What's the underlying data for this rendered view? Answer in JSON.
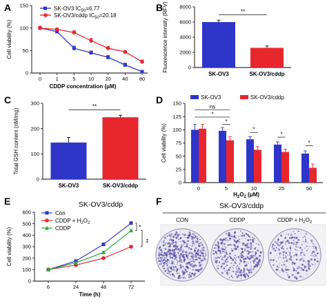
{
  "chart_data": [
    {
      "panel": "A",
      "type": "line",
      "categories": [
        "0",
        "1",
        "5",
        "10",
        "20",
        "40",
        "80"
      ],
      "series": [
        {
          "name": "SK-OV3 IC50=6.77",
          "color": "#2f35c9",
          "values": [
            100,
            92,
            55,
            45,
            35,
            18,
            3
          ],
          "errors": [
            4,
            4,
            5,
            4,
            4,
            4,
            3
          ]
        },
        {
          "name": "SK-OV3/cddp IC50=20.18",
          "color": "#e8262e",
          "values": [
            100,
            97,
            90,
            72,
            55,
            47,
            25
          ],
          "errors": [
            4,
            3,
            4,
            5,
            4,
            3,
            4
          ]
        }
      ],
      "xlabel": "CDDP concentration (μM)",
      "ylabel": "Cell viability (%)",
      "ylim": [
        0,
        150
      ],
      "yticks": [
        "0",
        "50",
        "100",
        "150"
      ],
      "grid": false,
      "legend": "top-left"
    },
    {
      "panel": "B",
      "type": "bar",
      "categories": [
        "SK-OV3",
        "SK-OV3/cddp"
      ],
      "values": [
        6000,
        2600
      ],
      "errors": [
        250,
        250
      ],
      "colors": [
        "#2f35c9",
        "#e8262e"
      ],
      "ylabel": "Fluorescence intensity (RFV)",
      "ylim": [
        0,
        8000
      ],
      "yticks": [
        "0",
        "2000",
        "4000",
        "6000",
        "8000"
      ],
      "significance": "**"
    },
    {
      "panel": "C",
      "type": "bar",
      "categories": [
        "SK-OV3",
        "SK-OV3/cddp"
      ],
      "values": [
        145,
        245
      ],
      "errors": [
        20,
        8
      ],
      "colors": [
        "#2f35c9",
        "#e8262e"
      ],
      "ylabel": "Total GSH content (nM/mg)",
      "ylim": [
        0,
        300
      ],
      "yticks": [
        "0",
        "100",
        "200",
        "300"
      ],
      "significance": "**"
    },
    {
      "panel": "D",
      "type": "bar",
      "categories": [
        "0",
        "5",
        "10",
        "25",
        "50"
      ],
      "series": [
        {
          "name": "SK-OV3",
          "color": "#2f35c9",
          "values": [
            100,
            98,
            82,
            72,
            55
          ],
          "errors": [
            10,
            6,
            5,
            5,
            5
          ]
        },
        {
          "name": "SK-OV3/cddp",
          "color": "#e8262e",
          "values": [
            102,
            80,
            62,
            58,
            28
          ],
          "errors": [
            8,
            7,
            6,
            5,
            7
          ]
        }
      ],
      "xlabel": "H₂O₂ (μM)",
      "ylabel": "Cell viability (%)",
      "ylim": [
        0,
        150
      ],
      "yticks": [
        "0",
        "25",
        "50",
        "75",
        "100",
        "125",
        "150"
      ],
      "annotations": [
        "ns",
        "*",
        "*",
        "*",
        "*",
        "*"
      ],
      "legend": "top"
    },
    {
      "panel": "E",
      "type": "line",
      "title": "SK-OV3/cddp",
      "categories": [
        "6",
        "24",
        "48",
        "72"
      ],
      "series": [
        {
          "name": "Con",
          "color": "#2f35c9",
          "marker": "square",
          "values": [
            100,
            175,
            320,
            505
          ],
          "errors": [
            6,
            8,
            12,
            12
          ]
        },
        {
          "name": "CDDP + H₂O₂",
          "color": "#e8262e",
          "marker": "circle",
          "values": [
            100,
            140,
            200,
            300
          ],
          "errors": [
            5,
            6,
            8,
            10
          ]
        },
        {
          "name": "CDDP",
          "color": "#22aa33",
          "marker": "triangle",
          "values": [
            100,
            160,
            250,
            440
          ],
          "errors": [
            5,
            7,
            10,
            12
          ]
        }
      ],
      "xlabel": "Time (h)",
      "ylabel": "Cell viability (%)",
      "ylim": [
        0,
        600
      ],
      "yticks": [
        "0",
        "100",
        "200",
        "300",
        "400",
        "500",
        "600"
      ],
      "annotations": [
        "*",
        "**"
      ],
      "legend": "top-left"
    }
  ],
  "panels": {
    "A": {
      "label": "A",
      "legend_lines": [
        {
          "pre": "SK-OV3 IC",
          "sub": "50",
          "post": "=6.77"
        },
        {
          "pre": "SK-OV3/cddp IC",
          "sub": "50",
          "post": "=20.18"
        }
      ]
    },
    "B": {
      "label": "B"
    },
    "C": {
      "label": "C"
    },
    "D": {
      "label": "D",
      "xlabel_pre": "H",
      "xlabel_sub": "2",
      "xlabel_post": "O",
      "xlabel_sub2": "2",
      "xlabel_tail": " (μM)"
    },
    "E": {
      "label": "E",
      "legend_cddp_h2o2_pre": "CDDP + H",
      "legend_cddp_h2o2_sub": "2",
      "legend_cddp_h2o2_post": "O",
      "legend_cddp_h2o2_sub2": "2"
    },
    "F": {
      "label": "F",
      "title": "SK-OV3/cddp",
      "columns": [
        "CON",
        "CDDP",
        "CDDP + H₂O₂"
      ],
      "col3_pre": "CDDP + H",
      "col3_sub": "2",
      "col3_mid": "O",
      "col3_sub2": "2",
      "colony_color": "#5a4fa8",
      "colony_density": [
        0.92,
        0.62,
        0.4
      ]
    }
  }
}
